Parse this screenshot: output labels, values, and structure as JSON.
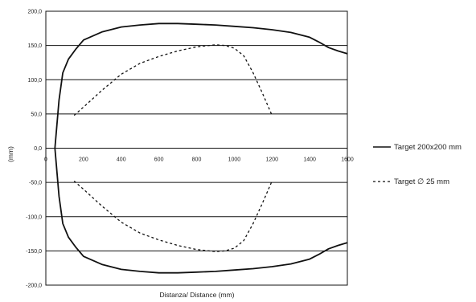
{
  "chart_data": {
    "type": "line",
    "title": "",
    "xlabel": "Distanza/ Distance  (mm)",
    "ylabel": "(mm)",
    "xlim": [
      0,
      1600
    ],
    "ylim": [
      -200,
      200
    ],
    "x_ticks": [
      0,
      200,
      400,
      600,
      800,
      1000,
      1200,
      1400,
      1600
    ],
    "x_tick_labels": [
      "0",
      "200",
      "400",
      "600",
      "800",
      "1000",
      "1200",
      "1400",
      "1600"
    ],
    "y_ticks": [
      200,
      150,
      100,
      50,
      0,
      -50,
      -100,
      -150,
      -200
    ],
    "y_tick_labels": [
      "200,0",
      "150,0",
      "100,0",
      "50,0",
      "0,0",
      "-50,0",
      "-100,0",
      "-150,0",
      "-200,0"
    ],
    "grid": "horizontal",
    "legend_position": "right",
    "series": [
      {
        "name": "Target 200x200 mm",
        "style": "solid",
        "color": "#111111",
        "points": [
          [
            48,
            0
          ],
          [
            70,
            70
          ],
          [
            90,
            110
          ],
          [
            120,
            130
          ],
          [
            160,
            145
          ],
          [
            200,
            158
          ],
          [
            300,
            170
          ],
          [
            400,
            177
          ],
          [
            500,
            180
          ],
          [
            600,
            182
          ],
          [
            700,
            182
          ],
          [
            800,
            181
          ],
          [
            900,
            180
          ],
          [
            1000,
            178
          ],
          [
            1100,
            176
          ],
          [
            1200,
            173
          ],
          [
            1300,
            169
          ],
          [
            1400,
            162
          ],
          [
            1450,
            155
          ],
          [
            1500,
            147
          ],
          [
            1550,
            142
          ],
          [
            1600,
            138
          ]
        ],
        "mirror": true
      },
      {
        "name": "Target ∅ 25 mm",
        "style": "dashed",
        "color": "#111111",
        "points": [
          [
            150,
            48
          ],
          [
            200,
            60
          ],
          [
            300,
            85
          ],
          [
            400,
            108
          ],
          [
            500,
            124
          ],
          [
            600,
            134
          ],
          [
            700,
            142
          ],
          [
            800,
            148
          ],
          [
            900,
            151
          ],
          [
            950,
            150
          ],
          [
            1000,
            146
          ],
          [
            1050,
            135
          ],
          [
            1100,
            110
          ],
          [
            1150,
            80
          ],
          [
            1200,
            48
          ]
        ],
        "mirror": true
      }
    ]
  }
}
